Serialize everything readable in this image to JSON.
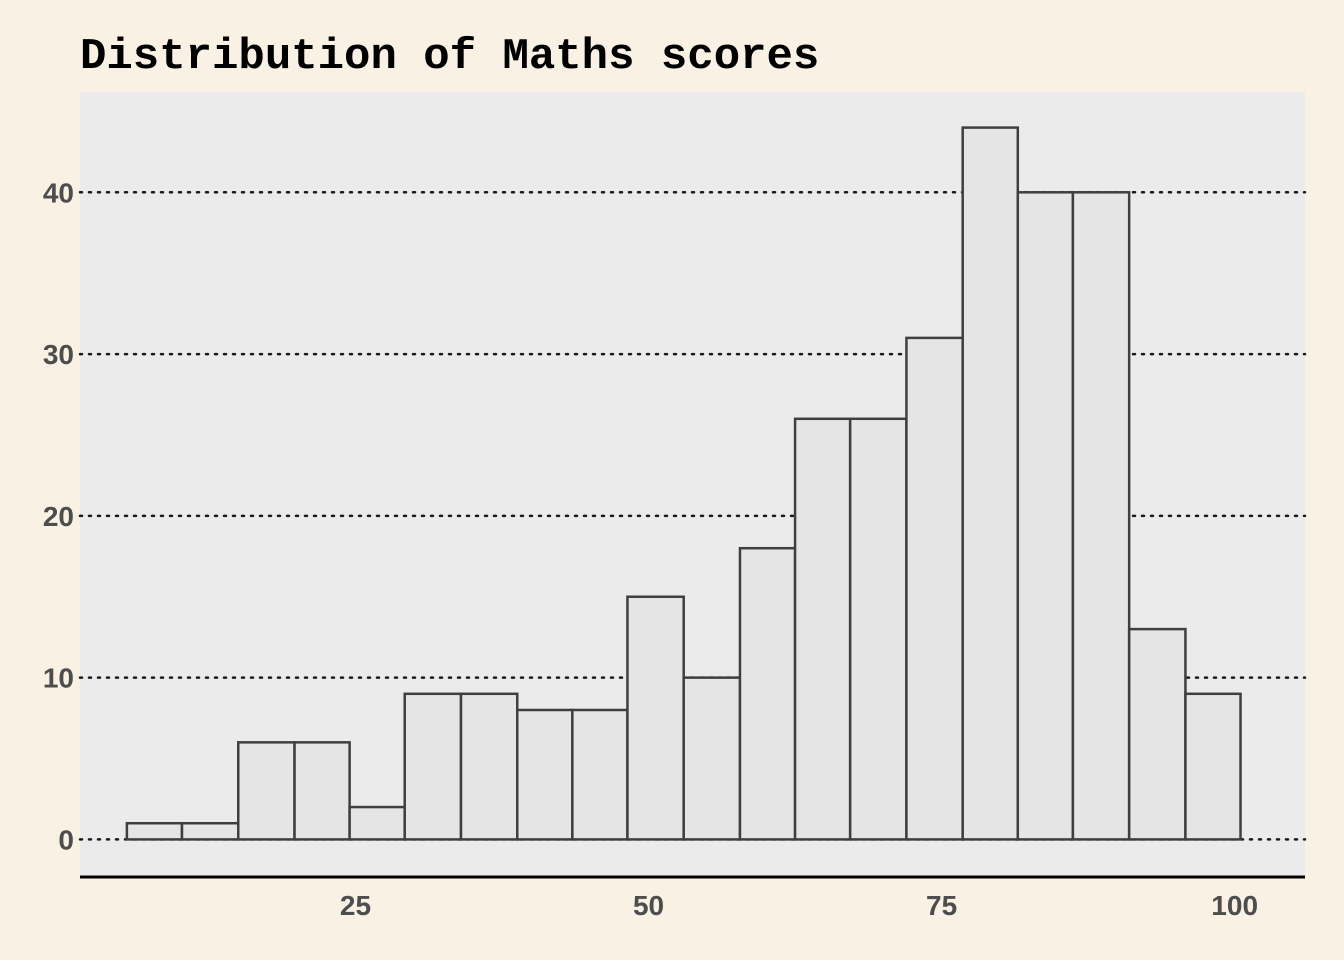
{
  "chart_data": {
    "type": "bar",
    "title": "Distribution of Maths scores",
    "xlabel": "",
    "ylabel": "",
    "bins": [
      {
        "x0": 5.5,
        "x1": 10.2,
        "count": 1
      },
      {
        "x0": 10.2,
        "x1": 15.0,
        "count": 1
      },
      {
        "x0": 15.0,
        "x1": 19.8,
        "count": 6
      },
      {
        "x0": 19.8,
        "x1": 24.5,
        "count": 6
      },
      {
        "x0": 24.5,
        "x1": 29.2,
        "count": 2
      },
      {
        "x0": 29.2,
        "x1": 34.0,
        "count": 9
      },
      {
        "x0": 34.0,
        "x1": 38.8,
        "count": 9
      },
      {
        "x0": 38.8,
        "x1": 43.5,
        "count": 8
      },
      {
        "x0": 43.5,
        "x1": 48.2,
        "count": 8
      },
      {
        "x0": 48.2,
        "x1": 53.0,
        "count": 15
      },
      {
        "x0": 53.0,
        "x1": 57.8,
        "count": 10
      },
      {
        "x0": 57.8,
        "x1": 62.5,
        "count": 18
      },
      {
        "x0": 62.5,
        "x1": 67.2,
        "count": 26
      },
      {
        "x0": 67.2,
        "x1": 72.0,
        "count": 26
      },
      {
        "x0": 72.0,
        "x1": 76.8,
        "count": 31
      },
      {
        "x0": 76.8,
        "x1": 81.5,
        "count": 44
      },
      {
        "x0": 81.5,
        "x1": 86.2,
        "count": 40
      },
      {
        "x0": 86.2,
        "x1": 91.0,
        "count": 40
      },
      {
        "x0": 91.0,
        "x1": 95.8,
        "count": 13
      },
      {
        "x0": 95.8,
        "x1": 100.5,
        "count": 9
      }
    ],
    "xlim": [
      1.5,
      106.0
    ],
    "ylim": [
      -2.2,
      46.2
    ],
    "x_ticks": [
      25,
      50,
      75,
      100
    ],
    "x_tick_labels": [
      "25",
      "50",
      "75",
      "100"
    ],
    "y_ticks": [
      0,
      10,
      20,
      30,
      40
    ],
    "y_tick_labels": [
      "0",
      "10",
      "20",
      "30",
      "40"
    ],
    "grid": "horizontal dotted",
    "legend": "none",
    "colors": {
      "background": "#f8f1e4",
      "panel": "#ebebeb",
      "bar_fill": "#e5e5e5",
      "bar_outline": "#3f3f3f",
      "grid": "#1a1a1a",
      "axis_line": "#000000",
      "tick_text": "#4d4d4d"
    }
  }
}
